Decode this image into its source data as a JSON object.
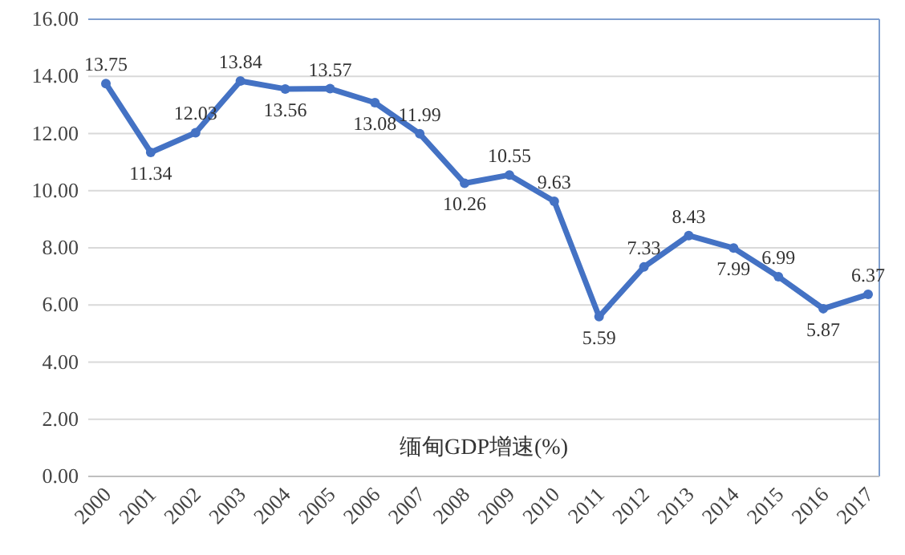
{
  "chart_data": {
    "type": "line",
    "title": "缅甸GDP增速(%)",
    "categories": [
      "2000",
      "2001",
      "2002",
      "2003",
      "2004",
      "2005",
      "2006",
      "2007",
      "2008",
      "2009",
      "2010",
      "2011",
      "2012",
      "2013",
      "2014",
      "2015",
      "2016",
      "2017"
    ],
    "series": [
      {
        "color": "#4472c4",
        "values": [
          13.75,
          11.34,
          12.03,
          13.84,
          13.56,
          13.57,
          13.08,
          11.99,
          10.26,
          10.55,
          9.63,
          5.59,
          7.33,
          8.43,
          7.99,
          6.99,
          5.87,
          6.37
        ]
      }
    ],
    "ylim": [
      0,
      16
    ],
    "yticks": [
      {
        "value": 0,
        "label": "0.00"
      },
      {
        "value": 2,
        "label": "2.00"
      },
      {
        "value": 4,
        "label": "4.00"
      },
      {
        "value": 6,
        "label": "6.00"
      },
      {
        "value": 8,
        "label": "8.00"
      },
      {
        "value": 10,
        "label": "10.00"
      },
      {
        "value": 12,
        "label": "12.00"
      },
      {
        "value": 14,
        "label": "14.00"
      },
      {
        "value": 16,
        "label": "16.00"
      }
    ],
    "grid": "y",
    "marker": "circle",
    "data_labels": true
  }
}
